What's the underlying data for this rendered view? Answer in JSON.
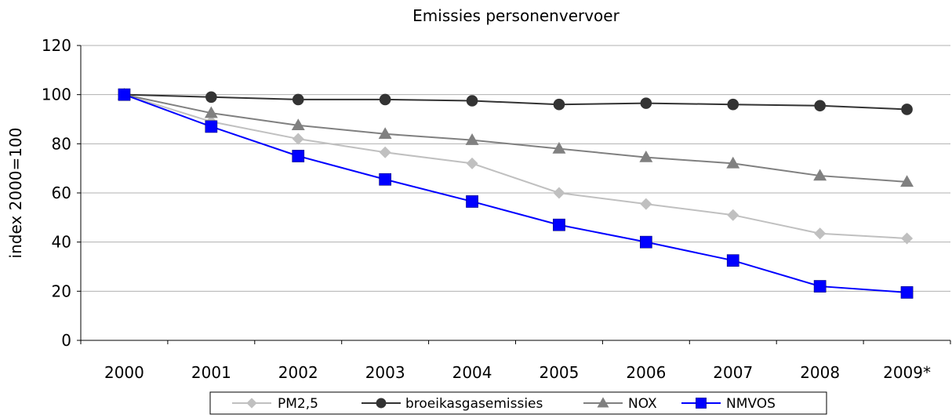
{
  "chart_data": {
    "type": "line",
    "title": "Emissies personenvervoer",
    "xlabel": "",
    "ylabel": "index 2000=100",
    "categories": [
      "2000",
      "2001",
      "2002",
      "2003",
      "2004",
      "2005",
      "2006",
      "2007",
      "2008",
      "2009*"
    ],
    "ylim": [
      0,
      120
    ],
    "yticks": [
      0,
      20,
      40,
      60,
      80,
      100,
      120
    ],
    "grid": true,
    "legend_position": "bottom",
    "series": [
      {
        "name": "PM2,5",
        "marker": "diamond",
        "color": "#c0c0c0",
        "values": [
          100,
          89,
          82,
          76.5,
          72,
          60,
          55.5,
          51,
          43.5,
          41.5
        ]
      },
      {
        "name": "broeikasgasemissies",
        "marker": "circle",
        "color": "#333333",
        "values": [
          100,
          99,
          98,
          98,
          97.5,
          96,
          96.5,
          96,
          95.5,
          94
        ]
      },
      {
        "name": "NOX",
        "marker": "triangle",
        "color": "#808080",
        "values": [
          100,
          92.5,
          87.5,
          84,
          81.5,
          78,
          74.5,
          72,
          67,
          64.5
        ]
      },
      {
        "name": "NMVOS",
        "marker": "square",
        "color": "#0000ff",
        "values": [
          100,
          87,
          75,
          65.5,
          56.5,
          47,
          40,
          32.5,
          22,
          19.5
        ]
      }
    ]
  }
}
